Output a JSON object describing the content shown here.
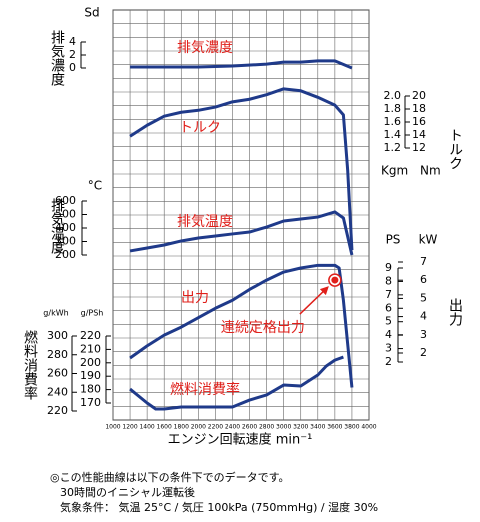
{
  "chart_data": {
    "type": "line",
    "x_label": "エンジン回転速度 min⁻¹",
    "xlim": [
      1000,
      4000
    ],
    "xticks": [
      1000,
      1200,
      1400,
      1600,
      1800,
      2000,
      2200,
      2400,
      2600,
      2800,
      3000,
      3200,
      3400,
      3600,
      3800,
      4000
    ],
    "grid": true,
    "series": [
      {
        "name": "排気濃度",
        "axis_title": "排気濃度",
        "color": "#1f3a8a",
        "x": [
          1200,
          1600,
          2000,
          2400,
          2800,
          3000,
          3200,
          3400,
          3600,
          3800
        ],
        "values": [
          0.15,
          0.15,
          0.15,
          0.3,
          0.6,
          0.9,
          0.9,
          1.1,
          1.1,
          0
        ],
        "axes": [
          {
            "unit": "Sd",
            "lim": [
              0,
              4
            ],
            "ticks": [
              0,
              2,
              4
            ]
          }
        ]
      },
      {
        "name": "トルク",
        "axis_title": "トルク",
        "color": "#1f3a8a",
        "x": [
          1200,
          1400,
          1600,
          1800,
          2000,
          2200,
          2400,
          2600,
          2800,
          3000,
          3200,
          3400,
          3600,
          3700,
          3750,
          3800
        ],
        "values": [
          1.38,
          1.55,
          1.69,
          1.75,
          1.78,
          1.83,
          1.91,
          1.95,
          2.02,
          2.11,
          2.08,
          1.98,
          1.86,
          1.71,
          0.86,
          -0.37
        ],
        "axes": [
          {
            "unit": "Kgm",
            "lim": [
              1.2,
              2.0
            ],
            "ticks": [
              1.2,
              1.4,
              1.6,
              1.8,
              {
                "value": 2,
                "label": "2.0"
              }
            ]
          },
          {
            "unit": "Nm",
            "lim": [
              12,
              20
            ],
            "ticks": [
              12,
              14,
              16,
              18,
              20
            ]
          }
        ]
      },
      {
        "name": "排気温度",
        "axis_title": "排気温度",
        "color": "#1f3a8a",
        "x": [
          1200,
          1400,
          1600,
          1800,
          2000,
          2200,
          2400,
          2600,
          2800,
          3000,
          3200,
          3400,
          3600,
          3700,
          3800
        ],
        "values": [
          230,
          252,
          274,
          304,
          326,
          341,
          356,
          370,
          407,
          452,
          467,
          481,
          519,
          474,
          200
        ],
        "axes": [
          {
            "unit": "°C",
            "lim": [
              200,
              600
            ],
            "ticks": [
              200,
              300,
              400,
              500,
              600
            ]
          }
        ]
      },
      {
        "name": "出力",
        "axis_title": "出力",
        "color": "#1f3a8a",
        "x": [
          1200,
          1400,
          1600,
          1800,
          2000,
          2200,
          2400,
          2600,
          2800,
          3000,
          3200,
          3400,
          3600,
          3650,
          3700,
          3800
        ],
        "values": [
          2.3,
          3.2,
          4.0,
          4.6,
          5.3,
          6.0,
          6.6,
          7.4,
          8.1,
          8.7,
          9.0,
          9.2,
          9.2,
          9.0,
          6.6,
          0.1
        ],
        "axes": [
          {
            "unit": "PS",
            "lim": [
              2,
              9
            ],
            "ticks": [
              2,
              3,
              4,
              5,
              6,
              7,
              8,
              9
            ]
          },
          {
            "unit": "kW",
            "lim": [
              2,
              7
            ],
            "ticks": [
              2,
              3,
              4,
              5,
              6,
              7
            ]
          }
        ]
      },
      {
        "name": "燃料消費率",
        "axis_title": "燃料消費率",
        "color": "#1f3a8a",
        "x": [
          1200,
          1400,
          1500,
          1600,
          1800,
          2000,
          2200,
          2400,
          2600,
          2800,
          3000,
          3200,
          3400,
          3500,
          3600,
          3700
        ],
        "values": [
          180.4,
          170,
          165.5,
          165.5,
          167,
          167,
          167,
          167,
          172.2,
          176,
          183.4,
          182.7,
          190.9,
          197.6,
          202,
          204.3
        ],
        "axes": [
          {
            "unit": "g/PSh",
            "lim": [
              170,
              220
            ],
            "ticks": [
              170,
              180,
              190,
              200,
              210,
              220
            ]
          },
          {
            "unit": "g/kWh",
            "lim": [
              220,
              300
            ],
            "ticks": [
              220,
              240,
              260,
              280,
              300
            ]
          }
        ]
      }
    ],
    "annotation": {
      "text": "連続定格出力",
      "x": 3600,
      "value": 8.1
    },
    "notes": [
      "◎この性能曲線は以下の条件下でのデータです。",
      "30時間のイニシャル運転後",
      "気象条件： 気温 25°C / 気圧 100kPa (750mmHg) / 湿度 30%"
    ]
  }
}
